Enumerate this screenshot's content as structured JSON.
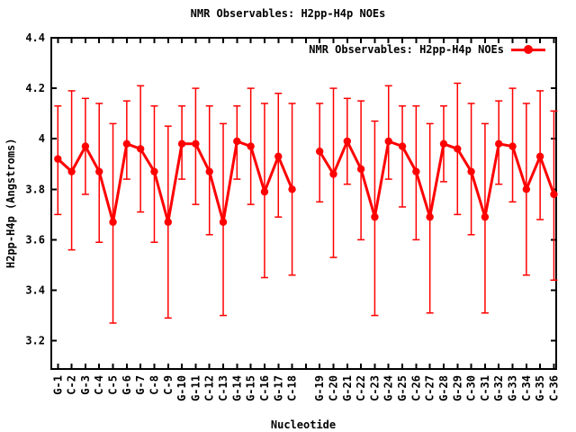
{
  "title": "NMR Observables: H2pp-H4p NOEs",
  "legend": {
    "label": "NMR Observables: H2pp-H4p NOEs",
    "marker": "filled-circle-on-line"
  },
  "chart_data": {
    "type": "line",
    "title": "NMR Observables: H2pp-H4p NOEs",
    "series_name": "NMR Observables: H2pp-H4p NOEs",
    "xlabel": "Nucleotide",
    "ylabel": "H2pp-H4p (Angstroms)",
    "y_tick_labels": [
      "3.2",
      "3.4",
      "3.6",
      "3.8",
      "4",
      "4.2",
      "4.4"
    ],
    "y_tick_values": [
      3.2,
      3.4,
      3.6,
      3.8,
      4.0,
      4.2,
      4.4
    ],
    "ylim": [
      3.09,
      4.4
    ],
    "grid": false,
    "legend_position": "top-right-inside",
    "marker": "filled-circle",
    "color": "#ff0000",
    "axis_color": "#000000",
    "error_bars": true,
    "gap_slots": 1,
    "segments": [
      {
        "name": "strand-1",
        "points": [
          {
            "label": "G-1",
            "value": 3.92,
            "lo": 3.7,
            "hi": 4.13
          },
          {
            "label": "C-2",
            "value": 3.87,
            "lo": 3.56,
            "hi": 4.19
          },
          {
            "label": "G-3",
            "value": 3.97,
            "lo": 3.78,
            "hi": 4.16
          },
          {
            "label": "C-4",
            "value": 3.87,
            "lo": 3.59,
            "hi": 4.14
          },
          {
            "label": "C-5",
            "value": 3.67,
            "lo": 3.27,
            "hi": 4.06
          },
          {
            "label": "G-6",
            "value": 3.98,
            "lo": 3.84,
            "hi": 4.15
          },
          {
            "label": "G-7",
            "value": 3.96,
            "lo": 3.71,
            "hi": 4.21
          },
          {
            "label": "C-8",
            "value": 3.87,
            "lo": 3.59,
            "hi": 4.13
          },
          {
            "label": "C-9",
            "value": 3.67,
            "lo": 3.29,
            "hi": 4.05
          },
          {
            "label": "G-10",
            "value": 3.98,
            "lo": 3.84,
            "hi": 4.13
          },
          {
            "label": "G-11",
            "value": 3.98,
            "lo": 3.74,
            "hi": 4.2
          },
          {
            "label": "C-12",
            "value": 3.87,
            "lo": 3.62,
            "hi": 4.13
          },
          {
            "label": "C-13",
            "value": 3.67,
            "lo": 3.3,
            "hi": 4.06
          },
          {
            "label": "G-14",
            "value": 3.99,
            "lo": 3.84,
            "hi": 4.13
          },
          {
            "label": "G-15",
            "value": 3.97,
            "lo": 3.74,
            "hi": 4.2
          },
          {
            "label": "C-16",
            "value": 3.79,
            "lo": 3.45,
            "hi": 4.14
          },
          {
            "label": "G-17",
            "value": 3.93,
            "lo": 3.69,
            "hi": 4.18
          },
          {
            "label": "C-18",
            "value": 3.8,
            "lo": 3.46,
            "hi": 4.14
          }
        ]
      },
      {
        "name": "strand-2",
        "points": [
          {
            "label": "G-19",
            "value": 3.95,
            "lo": 3.75,
            "hi": 4.14
          },
          {
            "label": "C-20",
            "value": 3.86,
            "lo": 3.53,
            "hi": 4.2
          },
          {
            "label": "G-21",
            "value": 3.99,
            "lo": 3.82,
            "hi": 4.16
          },
          {
            "label": "C-22",
            "value": 3.88,
            "lo": 3.6,
            "hi": 4.15
          },
          {
            "label": "C-23",
            "value": 3.69,
            "lo": 3.3,
            "hi": 4.07
          },
          {
            "label": "G-24",
            "value": 3.99,
            "lo": 3.84,
            "hi": 4.21
          },
          {
            "label": "G-25",
            "value": 3.97,
            "lo": 3.73,
            "hi": 4.13
          },
          {
            "label": "C-26",
            "value": 3.87,
            "lo": 3.6,
            "hi": 4.13
          },
          {
            "label": "C-27",
            "value": 3.69,
            "lo": 3.31,
            "hi": 4.06
          },
          {
            "label": "G-28",
            "value": 3.98,
            "lo": 3.83,
            "hi": 4.13
          },
          {
            "label": "G-29",
            "value": 3.96,
            "lo": 3.7,
            "hi": 4.22
          },
          {
            "label": "C-30",
            "value": 3.87,
            "lo": 3.62,
            "hi": 4.14
          },
          {
            "label": "C-31",
            "value": 3.69,
            "lo": 3.31,
            "hi": 4.06
          },
          {
            "label": "G-32",
            "value": 3.98,
            "lo": 3.82,
            "hi": 4.15
          },
          {
            "label": "G-33",
            "value": 3.97,
            "lo": 3.75,
            "hi": 4.2
          },
          {
            "label": "C-34",
            "value": 3.8,
            "lo": 3.46,
            "hi": 4.14
          },
          {
            "label": "G-35",
            "value": 3.93,
            "lo": 3.68,
            "hi": 4.19
          },
          {
            "label": "C-36",
            "value": 3.78,
            "lo": 3.44,
            "hi": 4.11
          }
        ]
      }
    ]
  }
}
